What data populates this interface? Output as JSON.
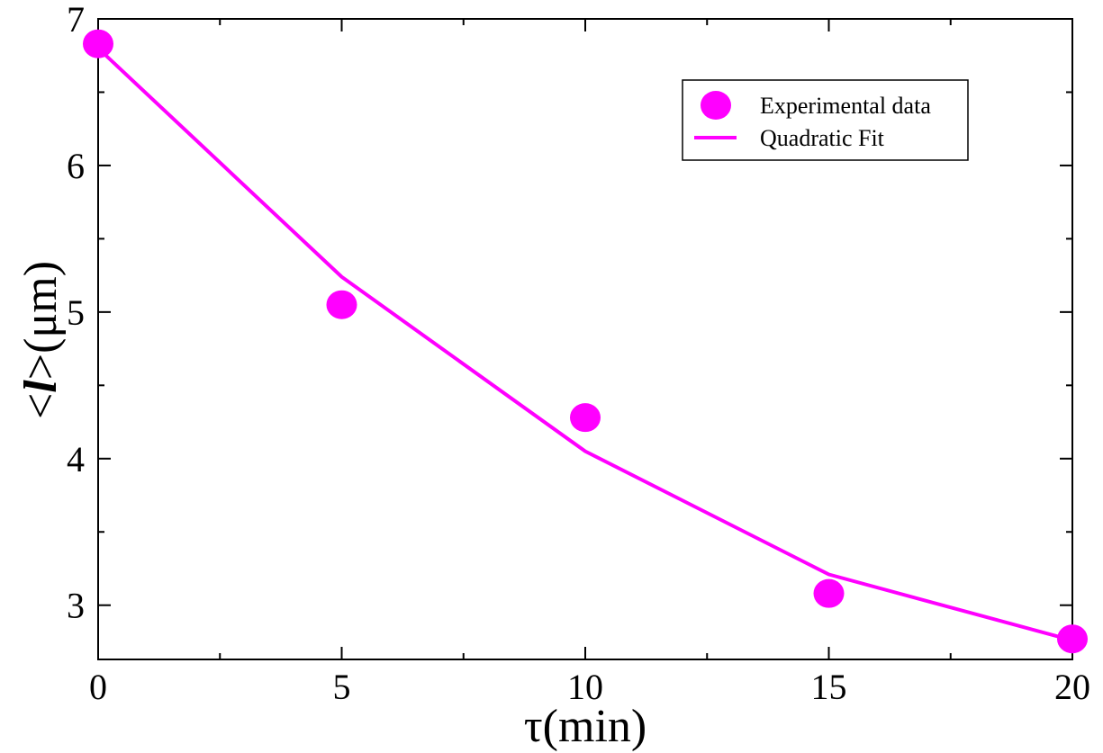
{
  "chart_data": {
    "type": "scatter",
    "title": "",
    "xlabel": "τ(min)",
    "ylabel_prefix": "<",
    "ylabel_symbol": "l",
    "ylabel_suffix": ">(μm)",
    "xlim": [
      0,
      20
    ],
    "ylim": [
      2.63,
      7.0
    ],
    "x_major_ticks": [
      0,
      5,
      10,
      15,
      20
    ],
    "x_minor_ticks": [
      2.5,
      7.5,
      12.5,
      17.5
    ],
    "y_major_ticks": [
      3,
      4,
      5,
      6,
      7
    ],
    "y_minor_ticks": [
      3.5,
      4.5,
      5.5,
      6.5
    ],
    "x_tick_labels": [
      "0",
      "5",
      "10",
      "15",
      "20"
    ],
    "y_tick_labels": [
      "3",
      "4",
      "5",
      "6",
      "7"
    ],
    "grid": false,
    "legend_position": "top-right",
    "series": [
      {
        "name": "Experimental data",
        "kind": "markers",
        "color": "#ff00ff",
        "x": [
          0,
          5,
          10,
          15,
          20
        ],
        "y": [
          6.83,
          5.05,
          4.28,
          3.08,
          2.77
        ]
      },
      {
        "name": "Quadratic Fit",
        "kind": "line",
        "color": "#ff00ff",
        "x": [
          0,
          5,
          10,
          15,
          20
        ],
        "y": [
          6.8,
          5.24,
          4.05,
          3.21,
          2.76
        ]
      }
    ]
  }
}
